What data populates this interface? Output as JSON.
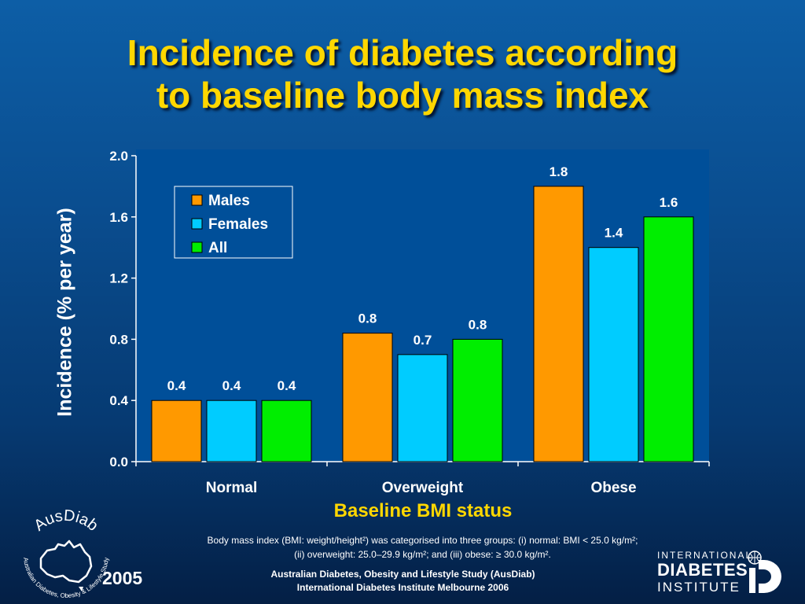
{
  "title": {
    "line1": "Incidence of diabetes according",
    "line2": "to baseline body mass index"
  },
  "chart_data": {
    "type": "bar",
    "categories": [
      "Normal",
      "Overweight",
      "Obese"
    ],
    "series": [
      {
        "name": "Males",
        "values": [
          0.4,
          0.84,
          1.8
        ],
        "labels": [
          "0.4",
          "0.8",
          "1.8"
        ],
        "color": "#ff9900"
      },
      {
        "name": "Females",
        "values": [
          0.4,
          0.7,
          1.4
        ],
        "labels": [
          "0.4",
          "0.7",
          "1.4"
        ],
        "color": "#00ccff"
      },
      {
        "name": "All",
        "values": [
          0.4,
          0.8,
          1.6
        ],
        "labels": [
          "0.4",
          "0.8",
          "1.6"
        ],
        "color": "#00ee00"
      }
    ],
    "ylim": [
      0,
      2.0
    ],
    "yticks": [
      "0.0",
      "0.4",
      "0.8",
      "1.2",
      "1.6",
      "2.0"
    ],
    "xlabel": "Baseline BMI status",
    "ylabel": "Incidence (% per year)",
    "legend_position": "top-left",
    "plot_background": "#004f99",
    "grid": false
  },
  "note": {
    "line1": "Body mass index (BMI: weight/height²) was categorised into three groups: (i) normal: BMI < 25.0 kg/m²;",
    "line2": "(ii) overweight: 25.0–29.9 kg/m²; and (iii) obese: ≥ 30.0 kg/m²."
  },
  "footer": {
    "line1": "Australian Diabetes, Obesity and Lifestyle Study (AusDiab)",
    "line2": "International Diabetes Institute Melbourne 2006"
  },
  "year": "2005",
  "logos": {
    "ausdiab_name": "AusDiab",
    "ausdiab_subtitle": "Australian Diabetes, Obesity & Lifestyle Study",
    "idi_line1": "INTERNATIONAL",
    "idi_line2": "DIABETES",
    "idi_line3": "INSTITUTE",
    "idi_icon": "idi-monogram-icon"
  }
}
